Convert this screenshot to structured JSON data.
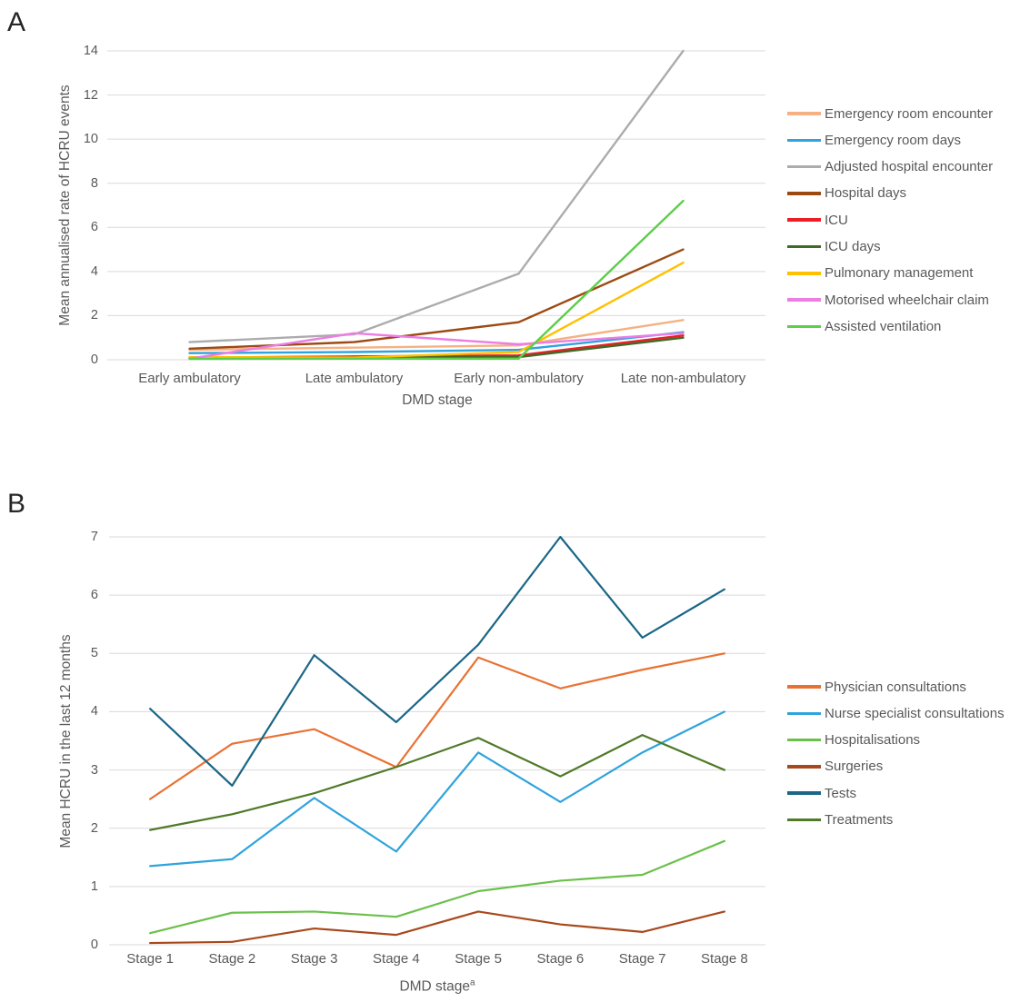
{
  "figure": {
    "background": "#ffffff",
    "gridline_color": "#d9d9d9",
    "text_color": "#595959",
    "panel_label_color": "#262626"
  },
  "chart_data": [
    {
      "type": "line",
      "panel_label": "A",
      "title": "",
      "xlabel": "DMD stage",
      "ylabel": "Mean annualised rate of HCRU events",
      "categories": [
        "Early ambulatory",
        "Late ambulatory",
        "Early non-ambulatory",
        "Late non-ambulatory"
      ],
      "ylim": [
        0,
        14
      ],
      "ytick_step": 2,
      "grid": true,
      "legend_position": "right",
      "series": [
        {
          "name": "Emergency room encounter",
          "color": "#F5B183",
          "values": [
            0.45,
            0.55,
            0.65,
            1.8
          ]
        },
        {
          "name": "Emergency room days",
          "color": "#2FA3DC",
          "values": [
            0.3,
            0.35,
            0.45,
            1.25
          ]
        },
        {
          "name": "Adjusted hospital encounter",
          "color": "#ACACAC",
          "values": [
            0.8,
            1.15,
            3.9,
            14
          ]
        },
        {
          "name": "Hospital days",
          "color": "#9C4A12",
          "values": [
            0.5,
            0.8,
            1.7,
            5
          ]
        },
        {
          "name": "ICU",
          "color": "#EB1E25",
          "values": [
            0.1,
            0.15,
            0.2,
            1.1
          ]
        },
        {
          "name": "ICU days",
          "color": "#3E6B26",
          "values": [
            0.08,
            0.1,
            0.12,
            1.0
          ]
        },
        {
          "name": "Pulmonary management",
          "color": "#FFC000",
          "values": [
            0.12,
            0.1,
            0.35,
            4.4
          ]
        },
        {
          "name": "Motorised wheelchair claim",
          "color": "#EC7DE3",
          "values": [
            0.05,
            1.2,
            0.7,
            1.2
          ]
        },
        {
          "name": "Assisted ventilation",
          "color": "#5CCE49",
          "values": [
            0.04,
            0.05,
            0.05,
            7.2
          ]
        }
      ]
    },
    {
      "type": "line",
      "panel_label": "B",
      "title": "",
      "xlabel": "DMD stage",
      "xlabel_sup": "a",
      "ylabel": "Mean HCRU in the last 12 months",
      "categories": [
        "Stage 1",
        "Stage 2",
        "Stage 3",
        "Stage 4",
        "Stage 5",
        "Stage 6",
        "Stage 7",
        "Stage 8"
      ],
      "ylim": [
        0,
        7
      ],
      "ytick_step": 1,
      "grid": true,
      "legend_position": "right",
      "series": [
        {
          "name": "Physician consultations",
          "color": "#E97132",
          "values": [
            2.5,
            3.45,
            3.7,
            3.05,
            4.93,
            4.4,
            4.72,
            5.0
          ]
        },
        {
          "name": "Nurse specialist consultations",
          "color": "#2FA3DC",
          "values": [
            1.35,
            1.47,
            2.52,
            1.6,
            3.3,
            2.45,
            3.3,
            4.0
          ]
        },
        {
          "name": "Hospitalisations",
          "color": "#6BC04B",
          "values": [
            0.2,
            0.55,
            0.57,
            0.48,
            0.92,
            1.1,
            1.2,
            1.78
          ]
        },
        {
          "name": "Surgeries",
          "color": "#A8491D",
          "values": [
            0.03,
            0.05,
            0.28,
            0.17,
            0.57,
            0.35,
            0.22,
            0.57
          ]
        },
        {
          "name": "Tests",
          "color": "#1B6687",
          "values": [
            4.05,
            2.73,
            4.97,
            3.82,
            5.15,
            7.0,
            5.27,
            6.1
          ]
        },
        {
          "name": "Treatments",
          "color": "#4F7A28",
          "values": [
            1.97,
            2.24,
            2.6,
            3.05,
            3.55,
            2.89,
            3.6,
            3.0
          ]
        }
      ]
    }
  ]
}
